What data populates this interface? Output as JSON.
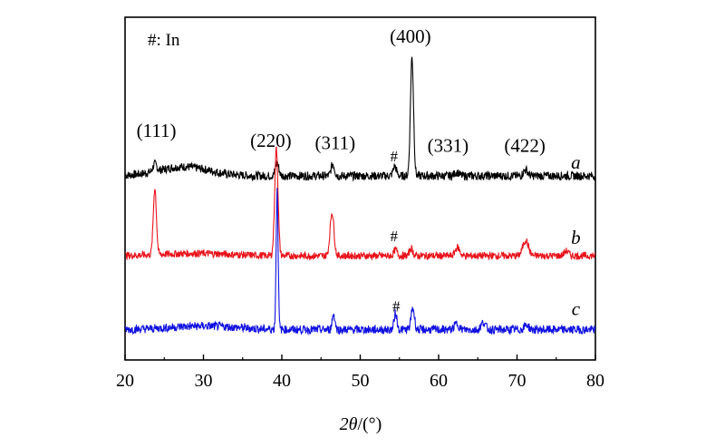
{
  "chart_data": {
    "type": "line",
    "title": "",
    "xlabel_italic": "2θ",
    "xlabel_rest": "/(°)",
    "ylabel": "",
    "xlim": [
      20,
      80
    ],
    "xticks": [
      20,
      30,
      40,
      50,
      60,
      70,
      80
    ],
    "yticks_shown": false,
    "grid": false,
    "legend_note": "#: In",
    "series": [
      {
        "name": "a",
        "color": "#000000",
        "baseline": 0.66,
        "noise": 0.035,
        "hump": {
          "x": 27.5,
          "height": 0.075,
          "width": 4.5
        },
        "peaks": [
          {
            "x": 23.8,
            "h": 0.06,
            "w": 0.35
          },
          {
            "x": 39.4,
            "h": 0.11,
            "w": 0.3
          },
          {
            "x": 46.5,
            "h": 0.1,
            "w": 0.3
          },
          {
            "x": 54.4,
            "h": 0.08,
            "w": 0.3
          },
          {
            "x": 56.6,
            "h": 0.98,
            "w": 0.28
          },
          {
            "x": 62.3,
            "h": 0.03,
            "w": 0.4
          },
          {
            "x": 71.1,
            "h": 0.05,
            "w": 0.4
          }
        ]
      },
      {
        "name": "b",
        "color": "#e8141c",
        "baseline": 0.0,
        "noise": 0.03,
        "hump": {
          "x": 29,
          "height": 0.02,
          "width": 6
        },
        "peaks": [
          {
            "x": 23.8,
            "h": 0.55,
            "w": 0.28
          },
          {
            "x": 39.3,
            "h": 0.89,
            "w": 0.3
          },
          {
            "x": 46.4,
            "h": 0.36,
            "w": 0.35
          },
          {
            "x": 54.5,
            "h": 0.05,
            "w": 0.3
          },
          {
            "x": 56.5,
            "h": 0.06,
            "w": 0.3
          },
          {
            "x": 62.4,
            "h": 0.07,
            "w": 0.4
          },
          {
            "x": 71.1,
            "h": 0.13,
            "w": 0.5
          },
          {
            "x": 76.3,
            "h": 0.04,
            "w": 0.4
          }
        ]
      },
      {
        "name": "c",
        "color": "#1010e0",
        "baseline": -0.61,
        "noise": 0.035,
        "hump": {
          "x": 30,
          "height": 0.03,
          "width": 6
        },
        "peaks": [
          {
            "x": 39.4,
            "h": 1.15,
            "w": 0.18
          },
          {
            "x": 46.6,
            "h": 0.13,
            "w": 0.25
          },
          {
            "x": 54.5,
            "h": 0.14,
            "w": 0.25
          },
          {
            "x": 56.7,
            "h": 0.18,
            "w": 0.3
          },
          {
            "x": 62.3,
            "h": 0.05,
            "w": 0.4
          },
          {
            "x": 65.7,
            "h": 0.06,
            "w": 0.4
          },
          {
            "x": 71.2,
            "h": 0.04,
            "w": 0.4
          }
        ]
      }
    ],
    "annotations": [
      {
        "text": "(111)",
        "x": 24.0,
        "y": 0.98
      },
      {
        "text": "(220)",
        "x": 38.6,
        "y": 0.9
      },
      {
        "text": "(311)",
        "x": 46.8,
        "y": 0.88
      },
      {
        "text": "(400)",
        "x": 56.4,
        "y": 1.76
      },
      {
        "text": "(331)",
        "x": 61.2,
        "y": 0.86
      },
      {
        "text": "(422)",
        "x": 71.0,
        "y": 0.86
      },
      {
        "text": "#",
        "x": 54.3,
        "y": 0.78
      },
      {
        "text": "#",
        "x": 54.3,
        "y": 0.12
      },
      {
        "text": "#",
        "x": 54.6,
        "y": -0.46
      }
    ],
    "curve_labels": [
      {
        "text": "a",
        "x": 77.5,
        "y": 0.72
      },
      {
        "text": "b",
        "x": 77.5,
        "y": 0.1
      },
      {
        "text": "c",
        "x": 77.5,
        "y": -0.49
      }
    ],
    "ylim": [
      -0.86,
      1.97
    ]
  }
}
